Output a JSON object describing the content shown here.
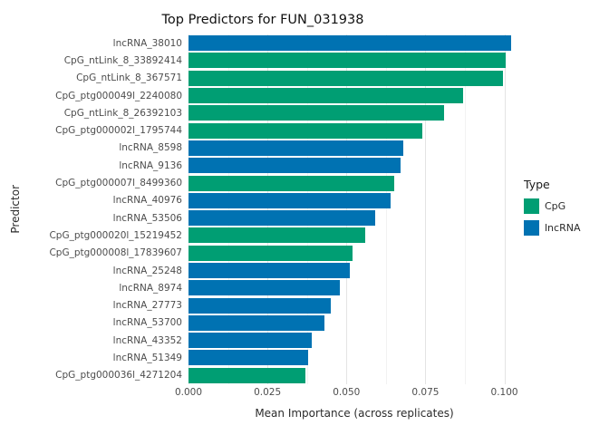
{
  "chart_data": {
    "type": "bar",
    "orientation": "horizontal",
    "title": "Top Predictors for FUN_031938",
    "xlabel": "Mean Importance (across replicates)",
    "ylabel": "Predictor",
    "xlim": [
      0,
      0.105
    ],
    "xticks": [
      0,
      0.025,
      0.05,
      0.075,
      0.1
    ],
    "xtick_labels": [
      "0.000",
      "0.025",
      "0.050",
      "0.075",
      "0.100"
    ],
    "grid": true,
    "legend": {
      "title": "Type",
      "position": "right",
      "entries": [
        {
          "label": "CpG",
          "color": "#009E73"
        },
        {
          "label": "lncRNA",
          "color": "#0072B2"
        }
      ]
    },
    "colors": {
      "CpG": "#009E73",
      "lncRNA": "#0072B2"
    },
    "bars": [
      {
        "label": "lncRNA_38010",
        "type": "lncRNA",
        "value": 0.102
      },
      {
        "label": "CpG_ntLink_8_33892414",
        "type": "CpG",
        "value": 0.1005
      },
      {
        "label": "CpG_ntLink_8_367571",
        "type": "CpG",
        "value": 0.0995
      },
      {
        "label": "CpG_ptg000049l_2240080",
        "type": "CpG",
        "value": 0.087
      },
      {
        "label": "CpG_ntLink_8_26392103",
        "type": "CpG",
        "value": 0.081
      },
      {
        "label": "CpG_ptg000002l_1795744",
        "type": "CpG",
        "value": 0.074
      },
      {
        "label": "lncRNA_8598",
        "type": "lncRNA",
        "value": 0.068
      },
      {
        "label": "lncRNA_9136",
        "type": "lncRNA",
        "value": 0.067
      },
      {
        "label": "CpG_ptg000007l_8499360",
        "type": "CpG",
        "value": 0.065
      },
      {
        "label": "lncRNA_40976",
        "type": "lncRNA",
        "value": 0.064
      },
      {
        "label": "lncRNA_53506",
        "type": "lncRNA",
        "value": 0.059
      },
      {
        "label": "CpG_ptg000020l_15219452",
        "type": "CpG",
        "value": 0.056
      },
      {
        "label": "CpG_ptg000008l_17839607",
        "type": "CpG",
        "value": 0.052
      },
      {
        "label": "lncRNA_25248",
        "type": "lncRNA",
        "value": 0.051
      },
      {
        "label": "lncRNA_8974",
        "type": "lncRNA",
        "value": 0.048
      },
      {
        "label": "lncRNA_27773",
        "type": "lncRNA",
        "value": 0.045
      },
      {
        "label": "lncRNA_53700",
        "type": "lncRNA",
        "value": 0.043
      },
      {
        "label": "lncRNA_43352",
        "type": "lncRNA",
        "value": 0.039
      },
      {
        "label": "lncRNA_51349",
        "type": "lncRNA",
        "value": 0.038
      },
      {
        "label": "CpG_ptg000036l_4271204",
        "type": "CpG",
        "value": 0.037
      }
    ]
  }
}
